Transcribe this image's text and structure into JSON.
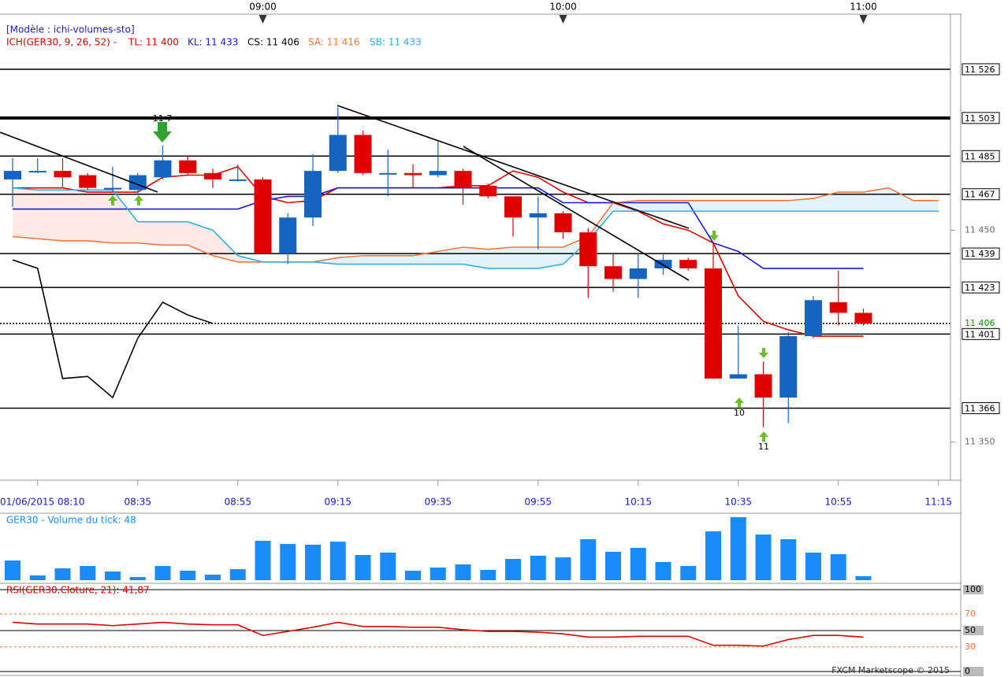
{
  "header": {
    "model": "[Modèle : ichi-volumes-sto]",
    "indicator": "ICH(GER30, 9, 26, 52) -",
    "tl": "TL: 11 400",
    "kl": "KL: 11 433",
    "cs": "CS: 11 406",
    "sa": "SA: 11 416",
    "sb": "SB: 11 433"
  },
  "annotations": [
    "10",
    "11",
    "11 7"
  ],
  "footer": "FXCM Marketscope © 2015",
  "chart_data": [
    {
      "type": "candlestick",
      "categories": [
        null,
        "01/06/2015 08:10",
        null,
        null,
        null,
        "08:35",
        null,
        null,
        null,
        "08:55",
        null,
        null,
        null,
        "09:15",
        null,
        null,
        null,
        "09:35",
        null,
        null,
        null,
        "09:55",
        null,
        null,
        null,
        "10:15",
        null,
        null,
        null,
        "10:35",
        null,
        null,
        null,
        "10:55",
        null,
        null,
        null,
        "11:15"
      ],
      "top_categories": [
        null,
        null,
        null,
        null,
        null,
        null,
        null,
        null,
        null,
        null,
        "09:00",
        null,
        null,
        null,
        null,
        null,
        null,
        null,
        null,
        null,
        null,
        null,
        "10:00",
        null,
        null,
        null,
        null,
        null,
        null,
        null,
        null,
        null,
        null,
        null,
        "11:00",
        null,
        null,
        null
      ],
      "open": [
        11474,
        11478,
        11478,
        11476,
        11470,
        11469,
        11475,
        11483,
        11477,
        11474,
        11474,
        11439,
        11456,
        11478,
        11495,
        11477,
        11477,
        11476,
        11478,
        11471,
        11466,
        11456,
        11458,
        11449,
        11433,
        11427,
        11432,
        11436,
        11432,
        11380,
        11382,
        11371,
        11400,
        11416,
        11411,
        null,
        null,
        null
      ],
      "high": [
        11484,
        11484,
        11484,
        11477,
        11480,
        11477,
        11490,
        11485,
        11479,
        11481,
        11475,
        11458,
        11486,
        11508,
        11497,
        11488,
        11481,
        11492,
        11479,
        11472,
        11466,
        11466,
        11459,
        11451,
        11439,
        11439,
        11439,
        11437,
        11444,
        11405,
        11388,
        11402,
        11419,
        11431,
        11413,
        null,
        null,
        null
      ],
      "low": [
        11461,
        11477,
        11470,
        11469,
        11468,
        11467,
        11474,
        11476,
        11470,
        11473,
        11439,
        11434,
        11452,
        11477,
        11476,
        11466,
        11470,
        11475,
        11462,
        11465,
        11447,
        11441,
        11446,
        11418,
        11421,
        11418,
        11429,
        11431,
        11380,
        11380,
        11357,
        11359,
        11399,
        11405,
        11405,
        null,
        null,
        null
      ],
      "close": [
        11478,
        11478,
        11475,
        11470,
        11470,
        11476,
        11483,
        11477,
        11474,
        11474,
        11439,
        11456,
        11478,
        11495,
        11477,
        11477,
        11476,
        11478,
        11470,
        11466,
        11456,
        11458,
        11449,
        11433,
        11427,
        11432,
        11436,
        11432,
        11380,
        11382,
        11371,
        11400,
        11417,
        11411,
        11406,
        null,
        null,
        null
      ],
      "up_color": "#1565c0",
      "down_color": "#e00000",
      "series": [
        {
          "name": "TL",
          "color": "#e00000",
          "values": [
            11470,
            11470,
            11470,
            11468,
            11468,
            11468,
            11475,
            11476,
            11476,
            11480,
            11466,
            11463,
            11464,
            11470,
            11470,
            11470,
            11470,
            11470,
            11471,
            11471,
            11478,
            11475,
            11468,
            11463,
            11463,
            11459,
            11453,
            11450,
            11444,
            11419,
            11407,
            11403,
            11400,
            11400,
            11400,
            null,
            null,
            null
          ]
        },
        {
          "name": "KL",
          "color": "#1a1ad0",
          "values": [
            11460,
            11460,
            11460,
            11460,
            11460,
            11460,
            11460,
            11460,
            11460,
            11460,
            11464,
            11466,
            11466,
            11470,
            11470,
            11470,
            11470,
            11470,
            11470,
            11470,
            11470,
            11470,
            11463,
            11463,
            11463,
            11463,
            11463,
            11463,
            11444,
            11440,
            11432,
            11432,
            11432,
            11432,
            11432,
            null,
            null,
            null
          ]
        },
        {
          "name": "SA",
          "color": "#f07840",
          "values": [
            11447,
            11446,
            11445,
            11445,
            11444,
            11444,
            11443,
            11443,
            11438,
            11435,
            11435,
            11435,
            11435,
            11437,
            11438,
            11438,
            11438,
            11440,
            11442,
            11441,
            11442,
            11442,
            11442,
            11447,
            11463,
            11464,
            11464,
            11464,
            11464,
            11464,
            11464,
            11464,
            11465,
            11468,
            11468,
            11470,
            11464,
            11464
          ]
        },
        {
          "name": "SB",
          "color": "#30b0e8",
          "values": [
            11470,
            11469,
            11469,
            11469,
            11469,
            11454,
            11454,
            11454,
            11450,
            11438,
            11435,
            11435,
            11435,
            11434,
            11434,
            11434,
            11434,
            11434,
            11434,
            11432,
            11432,
            11432,
            11434,
            11445,
            11459,
            11459,
            11459,
            11459,
            11459,
            11459,
            11459,
            11459,
            11459,
            11459,
            11459,
            11459,
            11459,
            11459
          ]
        },
        {
          "name": "CS",
          "color": "#000000",
          "values": [
            11436,
            11432,
            11380,
            11381,
            11371,
            11399,
            11416,
            11410,
            11406,
            null,
            null,
            null,
            null,
            null,
            null,
            null,
            null,
            null,
            null,
            null,
            null,
            null,
            null,
            null,
            null,
            null,
            null,
            null,
            null,
            null,
            null,
            null,
            null,
            null,
            null,
            null,
            null,
            null
          ]
        }
      ],
      "cloud_colors": [
        "#fde9e6",
        "#e4f3fb"
      ],
      "ylim": [
        11332,
        11552
      ],
      "yticks": [
        {
          "value": 11350,
          "label": "11 350"
        },
        {
          "value": 11450,
          "label": "11 450"
        }
      ],
      "levels": [
        {
          "value": 11526,
          "label": "11 526"
        },
        {
          "value": 11503,
          "label": "11 503"
        },
        {
          "value": 11485,
          "label": "11 485"
        },
        {
          "value": 11467,
          "label": "11 467"
        },
        {
          "value": 11439,
          "label": "11 439"
        },
        {
          "value": 11423,
          "label": "11 423"
        },
        {
          "value": 11401,
          "label": "11 401"
        },
        {
          "value": 11366,
          "label": "11 366"
        }
      ],
      "level_widths": [
        1.5,
        4,
        1.5,
        1.5,
        1.5,
        1.5,
        1.5,
        1.5
      ],
      "current_price": {
        "value": 11406,
        "label": "11 406"
      },
      "current_color": "#00a000"
    },
    {
      "type": "bar",
      "title": "GER30 - Volume du tick: 48",
      "values": [
        240,
        58,
        144,
        173,
        106,
        38,
        173,
        115,
        67,
        134,
        480,
        442,
        432,
        470,
        307,
        336,
        115,
        154,
        192,
        125,
        259,
        298,
        278,
        499,
        346,
        394,
        221,
        173,
        595,
        768,
        557,
        499,
        336,
        317,
        48
      ],
      "color": "#1a8cff",
      "ylim": [
        0,
        816
      ]
    },
    {
      "type": "line",
      "title": "RSI(GER30.Cloture, 21): 41,87",
      "values": [
        60,
        58,
        58,
        58,
        56,
        58,
        60,
        58,
        57,
        57,
        44,
        49,
        54,
        60,
        55,
        55,
        54,
        54,
        51,
        49,
        49,
        48,
        46,
        42,
        42,
        43,
        43,
        43,
        32,
        32,
        31,
        39,
        44,
        44,
        42
      ],
      "color": "#e00000",
      "ylim": [
        -4.8,
        106.7
      ],
      "yticks": [
        0,
        30,
        50,
        70,
        100
      ],
      "ytick_colors": [
        "#000000",
        "#f07840",
        "#000000",
        "#f07840",
        "#000000"
      ],
      "dashed_ticks": [
        30,
        70
      ]
    }
  ]
}
